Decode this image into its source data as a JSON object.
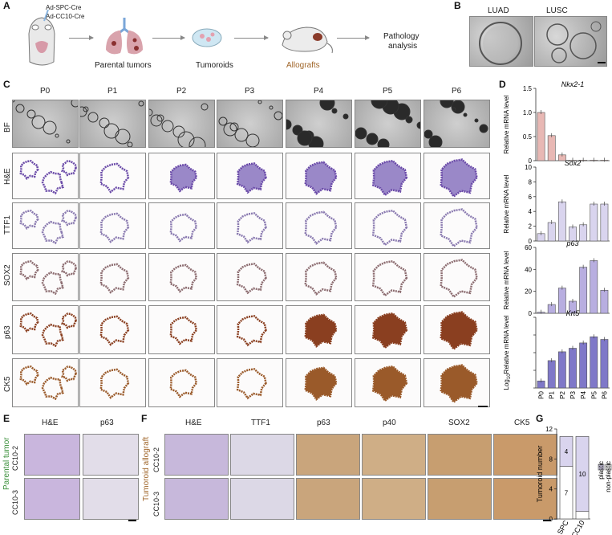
{
  "panel_letters": {
    "A": "A",
    "B": "B",
    "C": "C",
    "D": "D",
    "E": "E",
    "F": "F",
    "G": "G"
  },
  "panelA": {
    "cre1": "Ad-SPC-Cre",
    "cre2": "Ad-CC10-Cre",
    "parental": "Parental tumors",
    "tumoroids": "Tumoroids",
    "allografts": "Allografts",
    "pathology1": "Pathology",
    "pathology2": "analysis",
    "colors": {
      "parental": "#3a8f3a",
      "allografts": "#a0662a"
    }
  },
  "panelB": {
    "luad": "LUAD",
    "lusc": "LUSC"
  },
  "panelC": {
    "columns": [
      "P0",
      "P1",
      "P2",
      "P3",
      "P4",
      "P5",
      "P6"
    ],
    "rows": [
      "BF",
      "H&E",
      "TTF1",
      "SOX2",
      "p63",
      "CK5"
    ]
  },
  "panelE": {
    "columns": [
      "H&E",
      "p63"
    ],
    "rows": [
      "CC10-2",
      "CC10-3"
    ],
    "side_label": "Parental tumor",
    "side_color": "#3a8f3a"
  },
  "panelF": {
    "columns": [
      "H&E",
      "TTF1",
      "p63",
      "p40",
      "SOX2",
      "CK5"
    ],
    "rows": [
      "CC10-2",
      "CC10-3"
    ],
    "side_label": "Tumoroid allograft",
    "side_color": "#a0662a"
  },
  "chart_data": [
    {
      "type": "bar",
      "title": "Nkx2-1",
      "ylabel": "Relative mRNA level",
      "categories": [
        "P0",
        "P1",
        "P2",
        "P3",
        "P4",
        "P5",
        "P6"
      ],
      "values": [
        1.0,
        0.52,
        0.12,
        0.01,
        0.01,
        0.01,
        0.01
      ],
      "ylim": [
        0,
        1.5
      ],
      "ticks": [
        "0",
        "0.5",
        "1.0",
        "1.5"
      ],
      "color": "#e8b8b4"
    },
    {
      "type": "bar",
      "title": "Sox2",
      "ylabel": "Relative mRNA level",
      "categories": [
        "P0",
        "P1",
        "P2",
        "P3",
        "P4",
        "P5",
        "P6"
      ],
      "values": [
        1.0,
        2.5,
        5.3,
        1.9,
        2.2,
        5.0,
        5.0
      ],
      "ylim": [
        0,
        10
      ],
      "ticks": [
        "0",
        "2",
        "4",
        "6",
        "8",
        "10"
      ],
      "color": "#d9d4ee"
    },
    {
      "type": "bar",
      "title": "p63",
      "ylabel": "Relative mRNA level",
      "categories": [
        "P0",
        "P1",
        "P2",
        "P3",
        "P4",
        "P5",
        "P6"
      ],
      "values": [
        1,
        8,
        23,
        11,
        42,
        48,
        21
      ],
      "ylim": [
        0,
        60
      ],
      "ticks": [
        "0",
        "20",
        "40",
        "60"
      ],
      "color": "#b8aee0"
    },
    {
      "type": "bar",
      "title": "Krt5",
      "ylabel": "Log10 Relative mRNA level",
      "ylabel_main": "Relative mRNA level",
      "ylabel_prefix": "Log",
      "ylabel_sub": "10",
      "categories": [
        "P0",
        "P1",
        "P2",
        "P3",
        "P4",
        "P5",
        "P6"
      ],
      "values": [
        0.8,
        3.1,
        4.1,
        4.5,
        5.1,
        5.8,
        5.5
      ],
      "ylim": [
        0,
        8
      ],
      "ticks": [
        "",
        "",
        "",
        "",
        ""
      ],
      "color": "#7f78c8"
    },
    {
      "type": "bar",
      "stacked": true,
      "ylabel": "Tumoroid number",
      "categories": [
        "SPC",
        "CC10"
      ],
      "series": [
        {
          "name": "non-plastic",
          "values": [
            7,
            1
          ]
        },
        {
          "name": "plastic",
          "values": [
            4,
            10
          ]
        }
      ],
      "segment_labels": [
        "7",
        "4",
        "",
        "10"
      ],
      "ylim": [
        0,
        12
      ],
      "ticks": [
        "0",
        "4",
        "8",
        "12"
      ],
      "legend": [
        "plastic",
        "non-plastic"
      ],
      "colors": {
        "plastic": "#d9d4ee",
        "non-plastic": "#ffffff"
      }
    }
  ],
  "bar_edge": "#555555"
}
